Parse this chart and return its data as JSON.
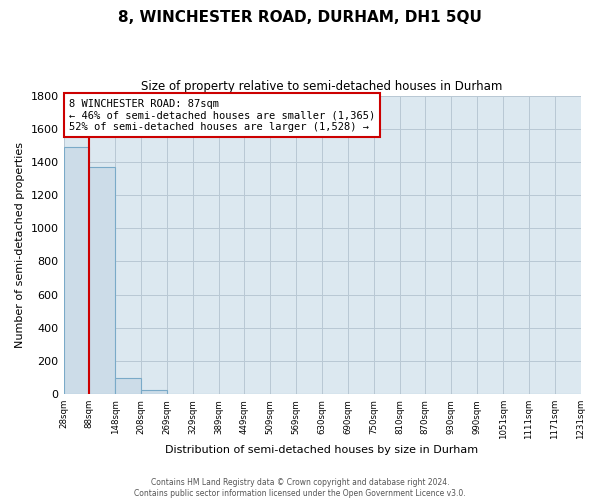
{
  "title": "8, WINCHESTER ROAD, DURHAM, DH1 5QU",
  "subtitle": "Size of property relative to semi-detached houses in Durham",
  "xlabel": "Distribution of semi-detached houses by size in Durham",
  "ylabel": "Number of semi-detached properties",
  "property_size": 87,
  "property_label": "8 WINCHESTER ROAD: 87sqm",
  "pct_smaller": 46,
  "pct_smaller_count": 1365,
  "pct_larger": 52,
  "pct_larger_count": 1528,
  "bin_edges": [
    28,
    88,
    148,
    208,
    269,
    329,
    389,
    449,
    509,
    569,
    630,
    690,
    750,
    810,
    870,
    930,
    990,
    1051,
    1111,
    1171,
    1231
  ],
  "bin_labels": [
    "28sqm",
    "88sqm",
    "148sqm",
    "208sqm",
    "269sqm",
    "329sqm",
    "389sqm",
    "449sqm",
    "509sqm",
    "569sqm",
    "630sqm",
    "690sqm",
    "750sqm",
    "810sqm",
    "870sqm",
    "930sqm",
    "990sqm",
    "1051sqm",
    "1111sqm",
    "1171sqm",
    "1231sqm"
  ],
  "bar_heights": [
    1490,
    1370,
    100,
    25,
    0,
    0,
    0,
    0,
    0,
    0,
    0,
    0,
    0,
    0,
    0,
    0,
    0,
    0,
    0,
    0
  ],
  "bar_color": "#ccdce8",
  "bar_edge_color": "#7aaac8",
  "redline_color": "#cc0000",
  "fig_background": "#ffffff",
  "axes_background": "#dce8f0",
  "grid_color": "#b8c8d4",
  "ylim": [
    0,
    1800
  ],
  "yticks": [
    0,
    200,
    400,
    600,
    800,
    1000,
    1200,
    1400,
    1600,
    1800
  ],
  "footer1": "Contains HM Land Registry data © Crown copyright and database right 2024.",
  "footer2": "Contains public sector information licensed under the Open Government Licence v3.0."
}
